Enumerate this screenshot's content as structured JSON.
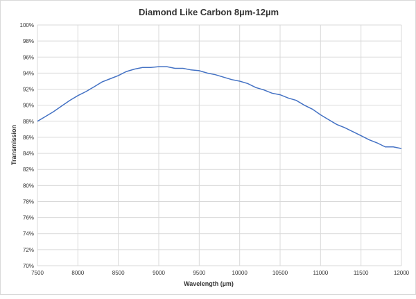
{
  "chart_data": {
    "type": "line",
    "title": "Diamond Like Carbon 8µm-12µm",
    "xlabel": "Wavelength (µm)",
    "ylabel": "Transmission",
    "xlim": [
      7500,
      12000
    ],
    "ylim": [
      70,
      100
    ],
    "xticks": [
      "7500",
      "8000",
      "8500",
      "9000",
      "9500",
      "10000",
      "10500",
      "11000",
      "11500",
      "12000"
    ],
    "yticks": [
      "70%",
      "72%",
      "74%",
      "76%",
      "78%",
      "80%",
      "82%",
      "84%",
      "86%",
      "88%",
      "90%",
      "92%",
      "94%",
      "96%",
      "98%",
      "100%"
    ],
    "grid": true,
    "line_color": "#4472c4",
    "series": [
      {
        "name": "Transmission",
        "x": [
          7500,
          7600,
          7700,
          7800,
          7900,
          8000,
          8100,
          8200,
          8300,
          8400,
          8500,
          8600,
          8700,
          8800,
          8900,
          9000,
          9100,
          9200,
          9300,
          9400,
          9500,
          9600,
          9700,
          9800,
          9900,
          10000,
          10100,
          10200,
          10300,
          10400,
          10500,
          10600,
          10700,
          10800,
          10900,
          11000,
          11100,
          11200,
          11300,
          11400,
          11500,
          11600,
          11700,
          11800,
          11900,
          12000
        ],
        "y": [
          88.0,
          88.6,
          89.2,
          89.9,
          90.6,
          91.2,
          91.7,
          92.3,
          92.9,
          93.3,
          93.7,
          94.2,
          94.5,
          94.7,
          94.7,
          94.8,
          94.8,
          94.6,
          94.6,
          94.4,
          94.3,
          94.0,
          93.8,
          93.5,
          93.2,
          93.0,
          92.7,
          92.2,
          91.9,
          91.5,
          91.3,
          90.9,
          90.6,
          90.0,
          89.5,
          88.8,
          88.2,
          87.6,
          87.2,
          86.7,
          86.2,
          85.7,
          85.3,
          84.8,
          84.8,
          84.6
        ]
      }
    ]
  }
}
